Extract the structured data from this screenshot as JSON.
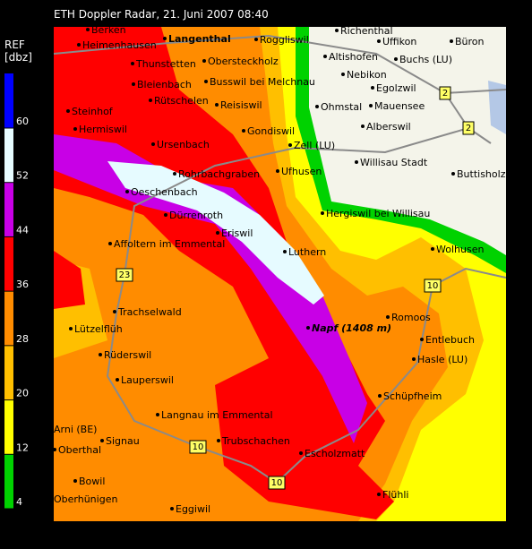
{
  "header": {
    "title": "ETH Doppler Radar, 21. Juni 2007 08:40"
  },
  "legend": {
    "title": "REF",
    "unit": "[dbz]",
    "ticks": [
      4,
      12,
      20,
      28,
      36,
      44,
      52,
      60
    ],
    "colors": [
      "#00d200",
      "#ffff00",
      "#ffbf00",
      "#ff8c00",
      "#ff0000",
      "#c800e6",
      "#e6fbff",
      "#0000ff"
    ]
  },
  "places": [
    "Berken",
    "Heimenhausen",
    "Langenthal",
    "Roggliswil",
    "Richenthal",
    "Uffikon",
    "Büron",
    "Thunstetten",
    "Obersteckholz",
    "Altishofen",
    "Buchs (LU)",
    "Nebikon",
    "Bleienbach",
    "Busswil bei Melchnau",
    "Egolzwil",
    "Rütschelen",
    "Reisiswil",
    "Ohmstal",
    "Mauensee",
    "Steinhof",
    "Hermiswil",
    "Gondiswil",
    "Alberswil",
    "Ursenbach",
    "Zell (LU)",
    "Willisau Stadt",
    "Rohrbachgraben",
    "Ufhusen",
    "Buttisholz",
    "Oeschenbach",
    "Dürrenroth",
    "Hergiswil bei Willisau",
    "Eriswil",
    "Affoltern im Emmental",
    "Luthern",
    "Wolhusen",
    "Trachselwald",
    "Romoos",
    "Napf (1408 m)",
    "Lützelflüh",
    "Entlebuch",
    "Rüderswil",
    "Hasle (LU)",
    "Lauperswil",
    "Schüpfheim",
    "Langnau im Emmental",
    "Arni (BE)",
    "Signau",
    "Trubschachen",
    "Escholzmatt",
    "Oberthal",
    "Bowil",
    "Oberhünigen",
    "Flühli",
    "Eggiwil"
  ],
  "roads": [
    "2",
    "2",
    "23",
    "10",
    "10",
    "10"
  ]
}
